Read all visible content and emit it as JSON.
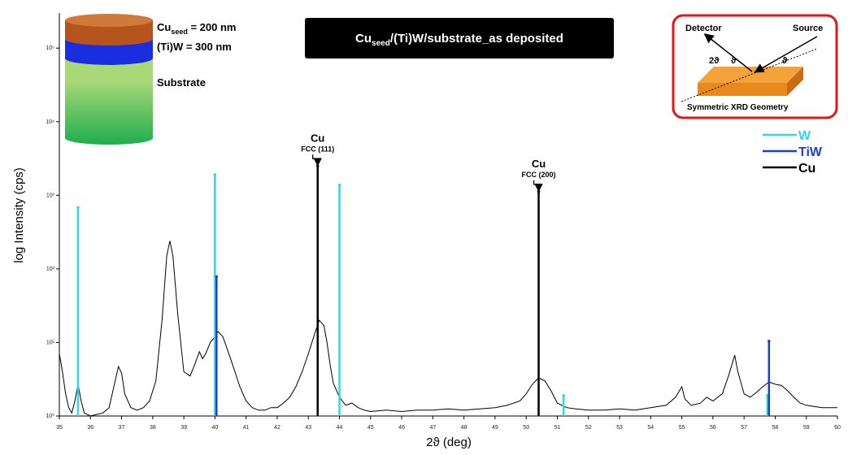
{
  "chart_data": {
    "type": "line",
    "title": [
      "Cu",
      "seed",
      "/(Ti)W/substrate_as deposited"
    ],
    "xlabel": "2ϑ (deg)",
    "ylabel": "log Intensity (cps)",
    "log_y": true,
    "xlim": [
      35,
      60
    ],
    "ylim": [
      1,
      300000
    ],
    "xticks": [
      35,
      36,
      37,
      38,
      39,
      40,
      41,
      42,
      43,
      44,
      45,
      46,
      47,
      48,
      49,
      50,
      51,
      52,
      53,
      54,
      55,
      56,
      57,
      58,
      59,
      60
    ],
    "yticks": [
      {
        "value": 1,
        "label": "10⁰"
      },
      {
        "value": 10,
        "label": "10¹"
      },
      {
        "value": 100,
        "label": "10²"
      },
      {
        "value": 1000,
        "label": "10³"
      },
      {
        "value": 10000,
        "label": "10⁴"
      },
      {
        "value": 100000,
        "label": "10⁵"
      }
    ],
    "legend": "right",
    "profile": {
      "color": "#000000",
      "x": [
        35.0,
        35.1,
        35.2,
        35.3,
        35.4,
        35.5,
        35.6,
        35.7,
        35.8,
        36.0,
        36.2,
        36.4,
        36.6,
        36.75,
        36.9,
        37.0,
        37.1,
        37.3,
        37.5,
        37.7,
        37.9,
        38.1,
        38.3,
        38.45,
        38.55,
        38.65,
        38.8,
        39.0,
        39.2,
        39.35,
        39.5,
        39.6,
        39.7,
        39.85,
        40.0,
        40.1,
        40.25,
        40.4,
        40.6,
        40.8,
        41.0,
        41.2,
        41.4,
        41.6,
        41.8,
        42.0,
        42.2,
        42.4,
        42.6,
        42.8,
        43.0,
        43.2,
        43.35,
        43.5,
        43.6,
        43.7,
        43.8,
        44.0,
        44.2,
        44.4,
        44.6,
        44.8,
        45.0,
        45.5,
        46.0,
        46.5,
        47.0,
        47.5,
        48.0,
        48.5,
        49.0,
        49.4,
        49.8,
        50.0,
        50.2,
        50.4,
        50.6,
        50.8,
        51.0,
        51.3,
        51.6,
        52.0,
        52.5,
        53.0,
        53.5,
        54.0,
        54.5,
        54.8,
        55.0,
        55.1,
        55.3,
        55.6,
        55.8,
        56.0,
        56.3,
        56.5,
        56.7,
        56.8,
        57.0,
        57.2,
        57.4,
        57.6,
        57.8,
        58.0,
        58.2,
        58.4,
        58.6,
        58.8,
        59.0,
        59.5,
        60.0
      ],
      "values": [
        7,
        4,
        2,
        1.3,
        1.1,
        1.6,
        2.7,
        1.6,
        1.1,
        1.0,
        1.05,
        1.1,
        1.3,
        2.5,
        4.7,
        3.8,
        2,
        1.3,
        1.2,
        1.3,
        1.6,
        3,
        20,
        150,
        240,
        150,
        25,
        4,
        3.5,
        5,
        7.5,
        6,
        7,
        10,
        12,
        14,
        12,
        8,
        4.5,
        2.5,
        1.6,
        1.3,
        1.2,
        1.2,
        1.3,
        1.3,
        1.5,
        1.8,
        2.5,
        4,
        7,
        13,
        20,
        17,
        10,
        5,
        2.8,
        1.8,
        1.4,
        1.5,
        1.3,
        1.2,
        1.15,
        1.2,
        1.15,
        1.2,
        1.2,
        1.25,
        1.2,
        1.25,
        1.3,
        1.4,
        1.6,
        2,
        2.7,
        3.3,
        3.0,
        2.2,
        1.5,
        1.3,
        1.25,
        1.2,
        1.2,
        1.25,
        1.2,
        1.3,
        1.4,
        1.8,
        2.5,
        1.7,
        1.4,
        1.5,
        1.8,
        1.6,
        2,
        3.5,
        6.7,
        4,
        2,
        1.8,
        2.1,
        2.5,
        2.9,
        2.7,
        2.6,
        2.2,
        1.8,
        1.5,
        1.4,
        1.3,
        1.3
      ]
    },
    "series": [
      {
        "name": "W",
        "color": "#33d6e8",
        "x": [
          35.6,
          40.0,
          44.0,
          51.2,
          57.75
        ],
        "values": [
          680,
          1900,
          1380,
          1.9,
          1.9
        ]
      },
      {
        "name": "TiW",
        "color": "#1c3fd0",
        "x": [
          40.05,
          57.8
        ],
        "values": [
          78,
          10.4
        ]
      },
      {
        "name": "Cu",
        "color": "#000000",
        "x": [
          43.3,
          50.4
        ],
        "values": [
          2500,
          1120
        ]
      }
    ],
    "annotations": [
      {
        "label": "Cu",
        "sublabel": "FCC (111)"
      },
      {
        "label": "Cu",
        "sublabel": "FCC (200)"
      }
    ],
    "layer_inset": {
      "layers": [
        [
          "Cu",
          "seed",
          " = 200 nm"
        ],
        [
          "(Ti)W = 300 nm"
        ],
        [
          "Substrate"
        ]
      ]
    },
    "geometry_inset": {
      "detector": "Detector",
      "source": "Source",
      "two_theta": "2ϑ",
      "theta": "ϑ",
      "caption": "Symmetric XRD Geometry"
    }
  }
}
